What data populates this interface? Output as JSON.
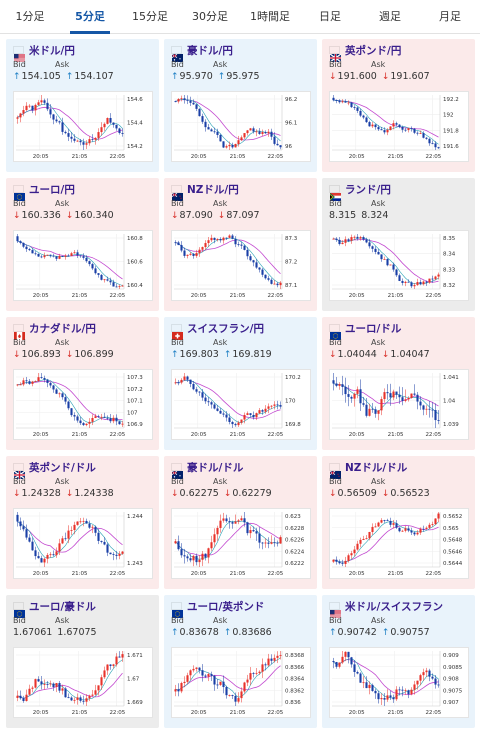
{
  "tabs": [
    {
      "label": "1分足",
      "active": false
    },
    {
      "label": "5分足",
      "active": true
    },
    {
      "label": "15分足",
      "active": false
    },
    {
      "label": "30分足",
      "active": false
    },
    {
      "label": "1時間足",
      "active": false
    },
    {
      "label": "日足",
      "active": false
    },
    {
      "label": "週足",
      "active": false
    },
    {
      "label": "月足",
      "active": false
    }
  ],
  "labels": {
    "bid": "Bid",
    "ask": "Ask"
  },
  "time_labels": [
    "20:05",
    "21:05",
    "22:05"
  ],
  "colors": {
    "up_bg": "#e9f3fb",
    "down_bg": "#fbeaea",
    "flat_bg": "#ececec",
    "candle_up": "#e8332b",
    "candle_down": "#1a3fa6",
    "ma": "#c34bd0",
    "pair_text": "#3a1f8c"
  },
  "cards": [
    {
      "pair": "米ドル/円",
      "flag": "us",
      "dir": "up",
      "bid": "154.105",
      "ask": "154.107",
      "yticks": [
        "154.6",
        "154.4",
        "154.2"
      ],
      "seed": 1,
      "trend": -1
    },
    {
      "pair": "豪ドル/円",
      "flag": "au",
      "dir": "up",
      "bid": "95.970",
      "ask": "95.975",
      "yticks": [
        "96.2",
        "96.1",
        "96"
      ],
      "seed": 2,
      "trend": -1
    },
    {
      "pair": "英ポンド/円",
      "flag": "gb",
      "dir": "down",
      "bid": "191.600",
      "ask": "191.607",
      "yticks": [
        "192.2",
        "192",
        "191.8",
        "191.6"
      ],
      "seed": 3,
      "trend": -1
    },
    {
      "pair": "ユーロ/円",
      "flag": "eu",
      "dir": "down",
      "bid": "160.336",
      "ask": "160.340",
      "yticks": [
        "160.8",
        "160.6",
        "160.4"
      ],
      "seed": 4,
      "trend": -1
    },
    {
      "pair": "NZドル/円",
      "flag": "nz",
      "dir": "down",
      "bid": "87.090",
      "ask": "87.097",
      "yticks": [
        "87.3",
        "87.2",
        "87.1"
      ],
      "seed": 5,
      "trend": -1
    },
    {
      "pair": "ランド/円",
      "flag": "za",
      "dir": "flat",
      "bid": "8.315",
      "ask": "8.324",
      "yticks": [
        "8.35",
        "8.34",
        "8.33",
        "8.32"
      ],
      "seed": 6,
      "trend": -1
    },
    {
      "pair": "カナダドル/円",
      "flag": "ca",
      "dir": "down",
      "bid": "106.893",
      "ask": "106.899",
      "yticks": [
        "107.3",
        "107.2",
        "107.1",
        "107",
        "106.9"
      ],
      "seed": 7,
      "trend": -1
    },
    {
      "pair": "スイスフラン/円",
      "flag": "ch",
      "dir": "up",
      "bid": "169.803",
      "ask": "169.819",
      "yticks": [
        "170.2",
        "170",
        "169.8"
      ],
      "seed": 8,
      "trend": -1
    },
    {
      "pair": "ユーロ/ドル",
      "flag": "eu",
      "dir": "down",
      "bid": "1.04044",
      "ask": "1.04047",
      "yticks": [
        "1.041",
        "1.04",
        "1.039"
      ],
      "seed": 9,
      "trend": 0
    },
    {
      "pair": "英ポンド/ドル",
      "flag": "gb",
      "dir": "down",
      "bid": "1.24328",
      "ask": "1.24338",
      "yticks": [
        "1.244",
        "1.243"
      ],
      "seed": 10,
      "trend": 0
    },
    {
      "pair": "豪ドル/ドル",
      "flag": "au",
      "dir": "down",
      "bid": "0.62275",
      "ask": "0.62279",
      "yticks": [
        "0.623",
        "0.6228",
        "0.6226",
        "0.6224",
        "0.6222"
      ],
      "seed": 11,
      "trend": 0
    },
    {
      "pair": "NZドル/ドル",
      "flag": "nz",
      "dir": "down",
      "bid": "0.56509",
      "ask": "0.56523",
      "yticks": [
        "0.5652",
        "0.565",
        "0.5648",
        "0.5646",
        "0.5644"
      ],
      "seed": 12,
      "trend": 1
    },
    {
      "pair": "ユーロ/豪ドル",
      "flag": "eu",
      "dir": "flat",
      "bid": "1.67061",
      "ask": "1.67075",
      "yticks": [
        "1.671",
        "1.67",
        "1.669"
      ],
      "seed": 13,
      "trend": 0
    },
    {
      "pair": "ユーロ/英ポンド",
      "flag": "eu",
      "dir": "up",
      "bid": "0.83678",
      "ask": "0.83686",
      "yticks": [
        "0.8368",
        "0.8366",
        "0.8364",
        "0.8362",
        "0.836"
      ],
      "seed": 14,
      "trend": 0
    },
    {
      "pair": "米ドル/スイスフラン",
      "flag": "us",
      "dir": "up",
      "bid": "0.90742",
      "ask": "0.90757",
      "yticks": [
        "0.909",
        "0.9085",
        "0.908",
        "0.9075",
        "0.907"
      ],
      "seed": 15,
      "trend": 0
    }
  ]
}
